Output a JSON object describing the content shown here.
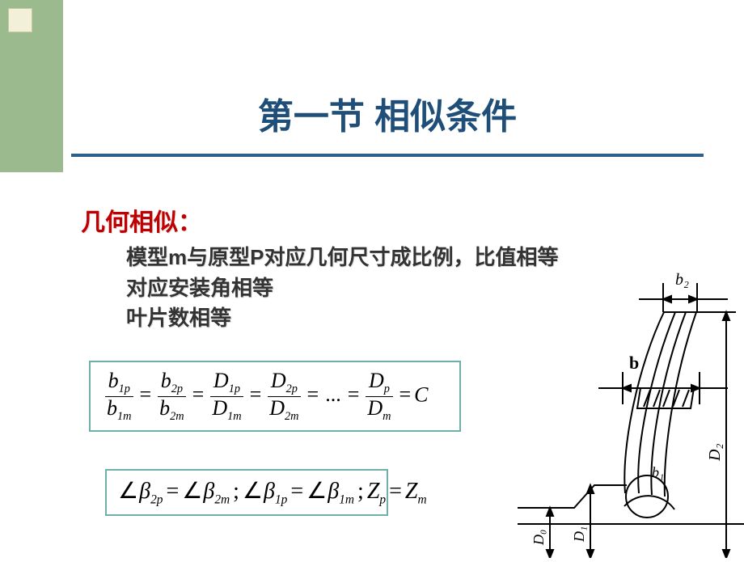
{
  "title": "第一节 相似条件",
  "subtitle": "几何相似：",
  "lines": {
    "l1": "模型m与原型P对应几何尺寸成比例，比值相等",
    "l2": "对应安装角相等",
    "l3": "叶片数相等"
  },
  "equation1": {
    "terms": [
      {
        "num_base": "b",
        "num_sub": "1p",
        "den_base": "b",
        "den_sub": "1m"
      },
      {
        "num_base": "b",
        "num_sub": "2p",
        "den_base": "b",
        "den_sub": "2m"
      },
      {
        "num_base": "D",
        "num_sub": "1p",
        "den_base": "D",
        "den_sub": "1m"
      },
      {
        "num_base": "D",
        "num_sub": "2p",
        "den_base": "D",
        "den_sub": "2m"
      }
    ],
    "dots": "...",
    "last": {
      "num_base": "D",
      "num_sub": "p",
      "den_base": "D",
      "den_sub": "m"
    },
    "equals_constant": "C"
  },
  "equation2": {
    "parts": [
      {
        "lhs_base": "β",
        "lhs_sub": "2p",
        "rhs_base": "β",
        "rhs_sub": "2m"
      },
      {
        "lhs_base": "β",
        "lhs_sub": "1p",
        "rhs_base": "β",
        "rhs_sub": "1m"
      }
    ],
    "z_lhs_base": "Z",
    "z_lhs_sub": "p",
    "z_rhs_base": "Z",
    "z_rhs_sub": "m",
    "angle_symbol": "∠",
    "eq": "=",
    "sep": ";"
  },
  "diagram": {
    "labels": {
      "b2": "b₂",
      "b": "b",
      "b1": "b₁",
      "D0": "D₀",
      "D1": "D₁",
      "D2": "D₂"
    },
    "colors": {
      "stroke": "#000000",
      "fill_hatch": "#000000"
    }
  },
  "style": {
    "corner_bg": "#9bbb8e",
    "corner_square": "#f3f0d9",
    "title_color": "#1f4e79",
    "underline_color": "#2f5e8a",
    "subtitle_color": "#c00000",
    "box_border": "#6fb0a8",
    "title_fontsize": 44,
    "subtitle_fontsize": 30,
    "body_fontsize": 26
  }
}
